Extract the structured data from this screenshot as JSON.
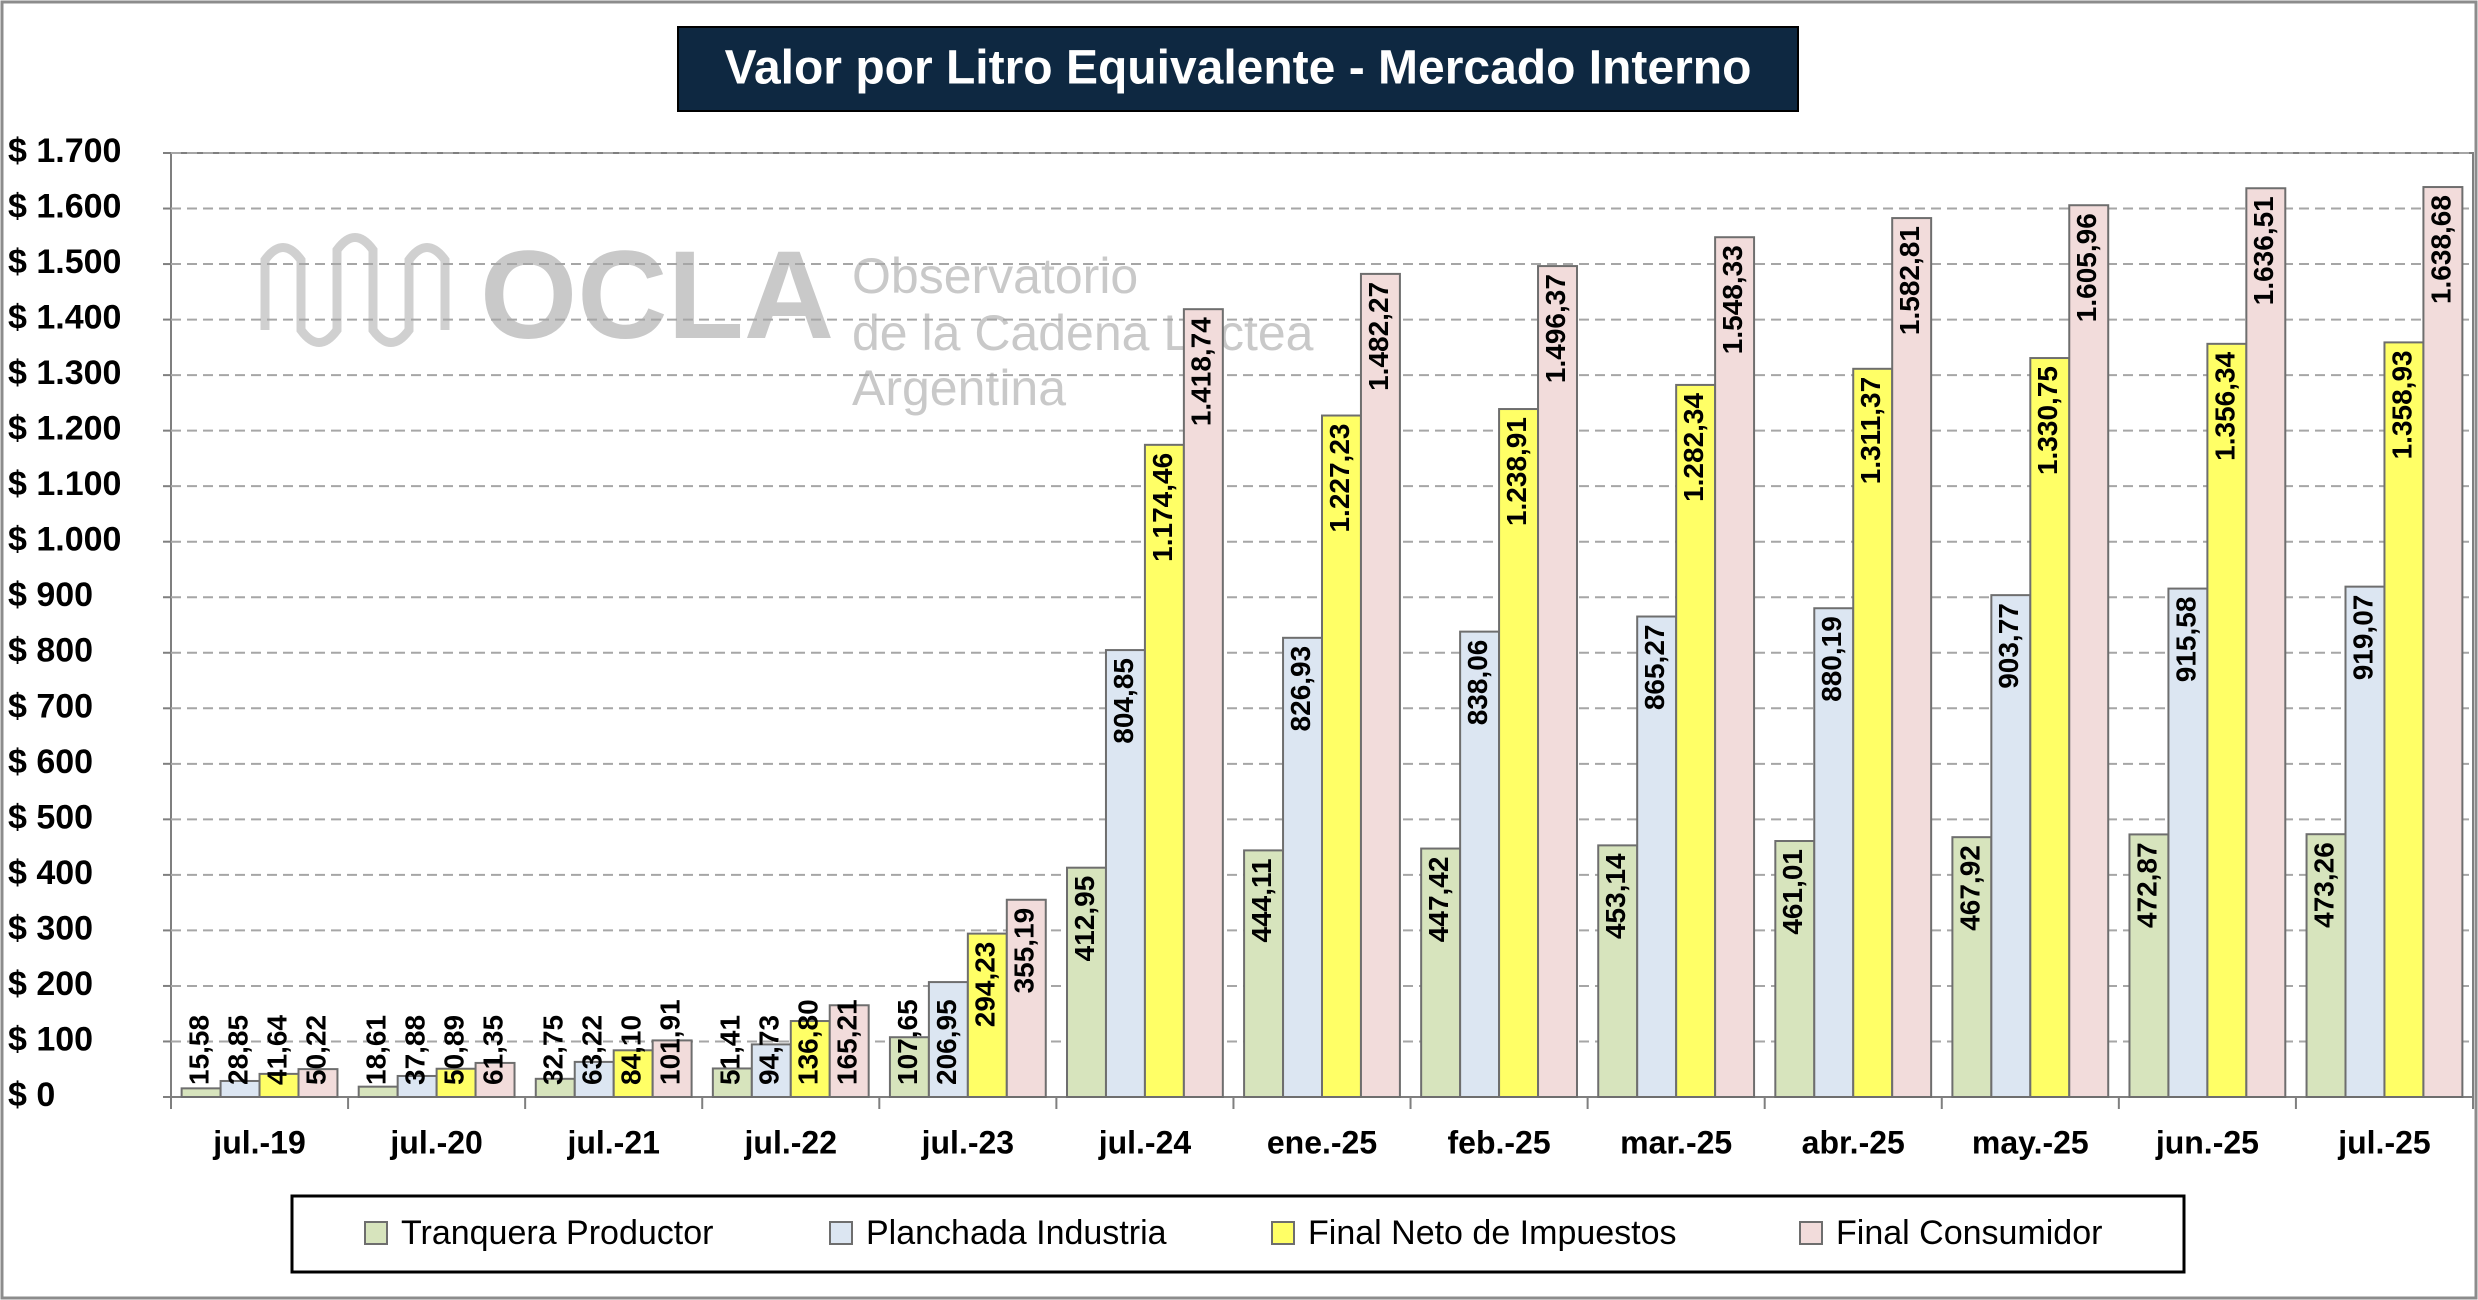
{
  "chart_data": {
    "type": "bar",
    "title": "Valor por Litro Equivalente - Mercado Interno",
    "watermark": {
      "logo": "OCLA",
      "lines": [
        "Observatorio",
        "de la Cadena Láctea",
        "Argentina"
      ]
    },
    "categories": [
      "jul.-19",
      "jul.-20",
      "jul.-21",
      "jul.-22",
      "jul.-23",
      "jul.-24",
      "ene.-25",
      "feb.-25",
      "mar.-25",
      "abr.-25",
      "may.-25",
      "jun.-25",
      "jul.-25"
    ],
    "series": [
      {
        "name": "Tranquera Productor",
        "color": "#d7e4bd",
        "values": [
          15.58,
          18.61,
          32.75,
          51.41,
          107.65,
          412.95,
          444.11,
          447.42,
          453.14,
          461.01,
          467.92,
          472.87,
          473.26
        ],
        "value_labels": [
          "15,58",
          "18,61",
          "32,75",
          "51,41",
          "107,65",
          "412,95",
          "444,11",
          "447,42",
          "453,14",
          "461,01",
          "467,92",
          "472,87",
          "473,26"
        ]
      },
      {
        "name": "Planchada Industria",
        "color": "#dce6f2",
        "values": [
          28.85,
          37.88,
          63.22,
          94.73,
          206.95,
          804.85,
          826.93,
          838.06,
          865.27,
          880.19,
          903.77,
          915.58,
          919.07
        ],
        "value_labels": [
          "28,85",
          "37,88",
          "63,22",
          "94,73",
          "206,95",
          "804,85",
          "826,93",
          "838,06",
          "865,27",
          "880,19",
          "903,77",
          "915,58",
          "919,07"
        ]
      },
      {
        "name": "Final Neto de Impuestos",
        "color": "#ffff66",
        "values": [
          41.64,
          50.89,
          84.1,
          136.8,
          294.23,
          1174.46,
          1227.23,
          1238.91,
          1282.34,
          1311.37,
          1330.75,
          1356.34,
          1358.93
        ],
        "value_labels": [
          "41,64",
          "50,89",
          "84,10",
          "136,80",
          "294,23",
          "1.174,46",
          "1.227,23",
          "1.238,91",
          "1.282,34",
          "1.311,37",
          "1.330,75",
          "1.356,34",
          "1.358,93"
        ]
      },
      {
        "name": "Final Consumidor",
        "color": "#f2dcdb",
        "values": [
          50.22,
          61.35,
          101.91,
          165.21,
          355.19,
          1418.74,
          1482.27,
          1496.37,
          1548.33,
          1582.81,
          1605.96,
          1636.51,
          1638.68
        ],
        "value_labels": [
          "50,22",
          "61,35",
          "101,91",
          "165,21",
          "355,19",
          "1.418,74",
          "1.482,27",
          "1.496,37",
          "1.548,33",
          "1.582,81",
          "1.605,96",
          "1.636,51",
          "1.638,68"
        ]
      }
    ],
    "ylim": [
      0,
      1700
    ],
    "yticks": [
      {
        "value": 0,
        "label": "$ 0"
      },
      {
        "value": 100,
        "label": "$ 100"
      },
      {
        "value": 200,
        "label": "$ 200"
      },
      {
        "value": 300,
        "label": "$ 300"
      },
      {
        "value": 400,
        "label": "$ 400"
      },
      {
        "value": 500,
        "label": "$ 500"
      },
      {
        "value": 600,
        "label": "$ 600"
      },
      {
        "value": 700,
        "label": "$ 700"
      },
      {
        "value": 800,
        "label": "$ 800"
      },
      {
        "value": 900,
        "label": "$ 900"
      },
      {
        "value": 1000,
        "label": "$ 1.000"
      },
      {
        "value": 1100,
        "label": "$ 1.100"
      },
      {
        "value": 1200,
        "label": "$ 1.200"
      },
      {
        "value": 1300,
        "label": "$ 1.300"
      },
      {
        "value": 1400,
        "label": "$ 1.400"
      },
      {
        "value": 1500,
        "label": "$ 1.500"
      },
      {
        "value": 1600,
        "label": "$ 1.600"
      },
      {
        "value": 1700,
        "label": "$ 1.700"
      }
    ],
    "grid": true,
    "legend": "bottom"
  }
}
